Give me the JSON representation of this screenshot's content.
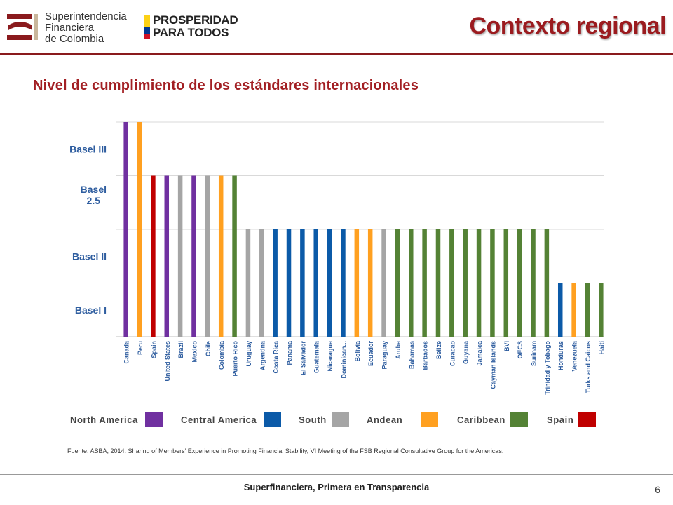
{
  "header": {
    "sfc_logo_lines": [
      "Superintendencia",
      "Financiera",
      "de Colombia"
    ],
    "pp_logo_lines": [
      "PROSPERIDAD",
      "PARA TODOS"
    ],
    "title": "Contexto regional"
  },
  "subtitle": "Nivel de cumplimiento de los estándares internacionales",
  "colors": {
    "north_america": "#7030a0",
    "central_america": "#0b5aa8",
    "south": "#a5a5a5",
    "andean": "#ffa020",
    "caribbean": "#548235",
    "spain": "#c00000",
    "title": "#9b1b1f"
  },
  "chart_data": {
    "type": "bar",
    "title": "",
    "xlabel": "",
    "ylabel": "",
    "y_levels": [
      "Basel I",
      "Basel II",
      "Basel 2.5",
      "Basel III"
    ],
    "ylim": [
      0,
      4
    ],
    "grid": true,
    "legend_position": "bottom",
    "categories": [
      "Canada",
      "Peru",
      "Spain",
      "United States",
      "Brazil",
      "Mexico",
      "Chile",
      "Colombia",
      "Puerto Rico",
      "Uruguay",
      "Argentina",
      "Costa Rica",
      "Panama",
      "El Salvador",
      "Guatemala",
      "Nicaragua",
      "Dominican...",
      "Bolivia",
      "Ecuador",
      "Paraguay",
      "Aruba",
      "Bahamas",
      "Barbados",
      "Belize",
      "Curacao",
      "Guyana",
      "Jamaica",
      "Cayman Islands",
      "BVI",
      "OECS",
      "Surinam",
      "Trinidad y Tobago",
      "Honduras",
      "Venezuela",
      "Turks and Caicos",
      "Haiti"
    ],
    "values": [
      4,
      4,
      3,
      3,
      3,
      3,
      3,
      3,
      3,
      2,
      2,
      2,
      2,
      2,
      2,
      2,
      2,
      2,
      2,
      2,
      2,
      2,
      2,
      2,
      2,
      2,
      2,
      2,
      2,
      2,
      2,
      2,
      1,
      1,
      1,
      1
    ],
    "groups": [
      "North America",
      "Andean",
      "Spain",
      "North America",
      "South",
      "North America",
      "South",
      "Andean",
      "Caribbean",
      "South",
      "South",
      "Central America",
      "Central America",
      "Central America",
      "Central America",
      "Central America",
      "Central America",
      "Andean",
      "Andean",
      "South",
      "Caribbean",
      "Caribbean",
      "Caribbean",
      "Caribbean",
      "Caribbean",
      "Caribbean",
      "Caribbean",
      "Caribbean",
      "Caribbean",
      "Caribbean",
      "Caribbean",
      "Caribbean",
      "Central America",
      "Andean",
      "Caribbean",
      "Caribbean"
    ],
    "legend": [
      {
        "name": "North America",
        "color": "#7030a0"
      },
      {
        "name": "Central America",
        "color": "#0b5aa8"
      },
      {
        "name": "South",
        "color": "#a5a5a5"
      },
      {
        "name": "Andean",
        "color": "#ffa020"
      },
      {
        "name": "Caribbean",
        "color": "#548235"
      },
      {
        "name": "Spain",
        "color": "#c00000"
      }
    ]
  },
  "source": "Fuente: ASBA, 2014. Sharing of Members’ Experience in Promoting Financial Stability, VI Meeting of the FSB Regional Consultative Group for the Americas.",
  "footer": "Superfinanciera, Primera en Transparencia",
  "page_number": "6"
}
